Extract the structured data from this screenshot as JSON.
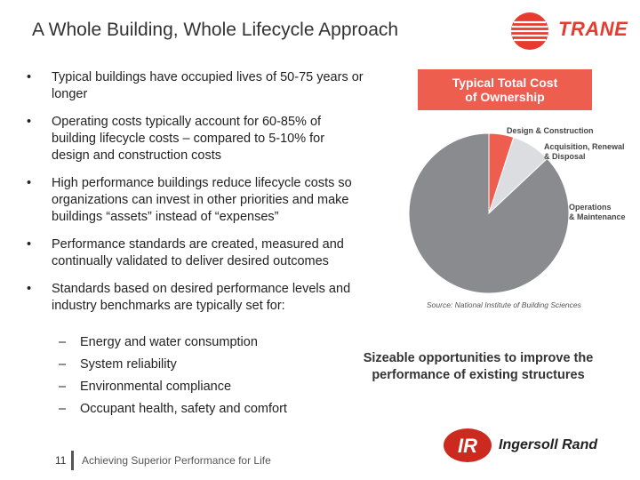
{
  "slide": {
    "title": "A Whole Building, Whole Lifecycle Approach",
    "bullet_marker": "•",
    "bullets": [
      "Typical buildings have occupied lives of 50-75 years or longer",
      "Operating costs typically account for 60-85% of building lifecycle costs – compared to 5-10% for design and construction costs",
      "High performance buildings reduce lifecycle costs so organizations can invest in other priorities and make buildings “assets” instead of “expenses”",
      "Performance standards are created, measured and continually validated to deliver desired outcomes",
      "Standards based on desired performance levels and industry benchmarks are typically set for:"
    ],
    "dash_marker": "–",
    "sub_bullets": [
      "Energy and water consumption",
      "System reliability",
      "Environmental compliance",
      "Occupant health, safety and comfort"
    ],
    "opportunity_text": "Sizeable opportunities to improve the performance of existing structures",
    "footer": {
      "page_number": "11",
      "tagline": "Achieving Superior Performance for Life"
    },
    "logos": {
      "trane": "TRANE",
      "ir_mark": "IR",
      "ingersoll_rand": "Ingersoll Rand"
    },
    "colors": {
      "brand_red": "#e63b2e",
      "chart_title_bg": "#ee5e4e"
    }
  },
  "chart_data": {
    "type": "pie",
    "title_line1": "Typical Total Cost",
    "title_line2": "of Ownership",
    "slices": [
      {
        "label_line1": "Design & Construction",
        "label_line2": "",
        "value": 5,
        "color": "#ee5e4e"
      },
      {
        "label_line1": "Acquisition, Renewal",
        "label_line2": "& Disposal",
        "value": 8,
        "color": "#dcdde0"
      },
      {
        "label_line1": "Operations",
        "label_line2": "& Maintenance",
        "value": 87,
        "color": "#8a8b8e"
      }
    ],
    "source": "Source: National Institute of Building Sciences"
  }
}
